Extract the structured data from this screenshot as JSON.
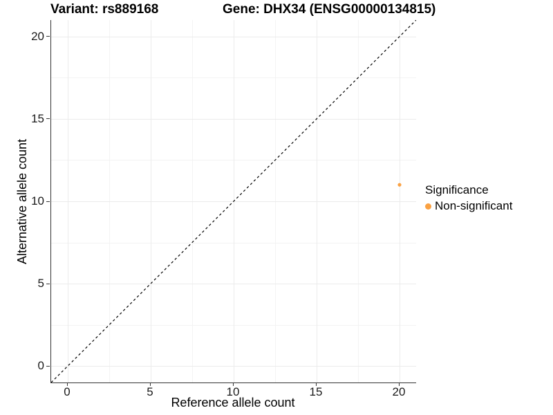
{
  "chart_data": {
    "type": "scatter",
    "titles": {
      "left": "Variant: rs889168",
      "right": "Gene: DHX34 (ENSG00000134815)"
    },
    "xlabel": "Reference allele count",
    "ylabel": "Alternative allele count",
    "xlim": [
      -1,
      21
    ],
    "ylim": [
      -1,
      21
    ],
    "x_ticks": [
      0,
      5,
      10,
      15,
      20
    ],
    "y_ticks": [
      0,
      5,
      10,
      15,
      20
    ],
    "x_minor_ticks": [
      2.5,
      7.5,
      12.5,
      17.5
    ],
    "y_minor_ticks": [
      2.5,
      7.5,
      12.5,
      17.5
    ],
    "grid": true,
    "points": [
      {
        "x": 20,
        "y": 11,
        "series": "Non-significant"
      }
    ],
    "reference_line": {
      "kind": "identity",
      "style": "dashed",
      "from": [
        -1,
        -1
      ],
      "to": [
        21,
        21
      ],
      "color": "#000000"
    },
    "legend": {
      "title": "Significance",
      "position": "right",
      "entries": [
        {
          "label": "Non-significant",
          "color": "#FAA142",
          "marker": "circle"
        }
      ]
    },
    "colors": {
      "point": "#FAA142",
      "axis_line": "#333333",
      "grid_major": "#EBEBEB",
      "grid_minor": "#F3F3F3",
      "background": "#FFFFFF"
    }
  }
}
